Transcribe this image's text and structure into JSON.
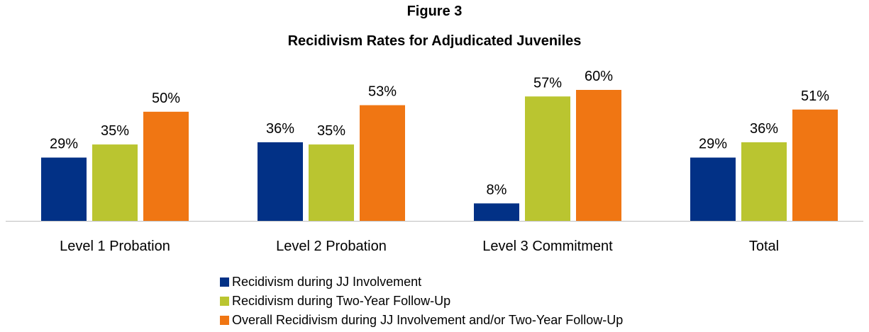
{
  "chart_data": {
    "type": "bar",
    "title": "Figure 3",
    "subtitle": "Recidivism Rates for Adjudicated Juveniles",
    "categories": [
      "Level 1 Probation",
      "Level 2 Probation",
      "Level 3 Commitment",
      "Total"
    ],
    "series": [
      {
        "name": "Recidivism during JJ Involvement",
        "color": "#023186",
        "values": [
          29,
          36,
          8,
          29
        ]
      },
      {
        "name": "Recidivism during Two-Year Follow-Up",
        "color": "#bac530",
        "values": [
          35,
          35,
          57,
          36
        ]
      },
      {
        "name": "Overall Recidivism during JJ Involvement and/or Two-Year Follow-Up",
        "color": "#f07613",
        "values": [
          50,
          53,
          60,
          51
        ]
      }
    ],
    "value_suffix": "%",
    "ylim": [
      0,
      72
    ],
    "grid": false,
    "legend_position": "bottom",
    "axis_color": "#bfbfbf"
  }
}
